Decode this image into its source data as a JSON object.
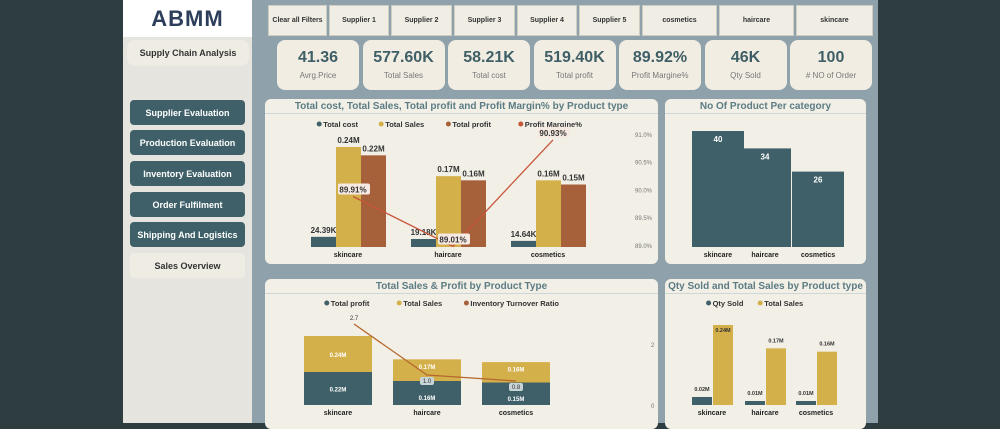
{
  "logo": "ABMM",
  "sidebar": {
    "title": "Supply Chain Analysis",
    "items": [
      "Supplier Evaluation",
      "Production Evaluation",
      "Inventory Evaluation",
      "Order Fulfilment",
      "Shipping And Logistics",
      "Sales Overview"
    ],
    "active": "Sales Overview"
  },
  "filters": [
    "Clear all Filters",
    "Supplier 1",
    "Supplier 2",
    "Supplier 3",
    "Supplier 4",
    "Supplier 5",
    "cosmetics",
    "haircare",
    "skincare"
  ],
  "kpis": [
    {
      "value": "41.36",
      "label": "Avrg.Price"
    },
    {
      "value": "577.60K",
      "label": "Total Sales"
    },
    {
      "value": "58.21K",
      "label": "Total cost"
    },
    {
      "value": "519.40K",
      "label": "Total profit"
    },
    {
      "value": "89.92%",
      "label": "Profit Margine%"
    },
    {
      "value": "46K",
      "label": "Qty Sold"
    },
    {
      "value": "100",
      "label": "# NO of Order"
    }
  ],
  "colors": {
    "cost": "#3f6068",
    "sales": "#d4b04a",
    "profit": "#a6603a",
    "margin": "#c8553a",
    "sidebar_button": "#3f6068"
  },
  "chart_data": [
    {
      "type": "bar",
      "title": "Total cost, Total Sales, Total profit and Profit Margin% by Product type",
      "categories": [
        "skincare",
        "haircare",
        "cosmetics"
      ],
      "series": [
        {
          "name": "Total cost",
          "values": [
            24390,
            19180,
            14640
          ],
          "labels": [
            "24.39K",
            "19.18K",
            "14.64K"
          ]
        },
        {
          "name": "Total Sales",
          "values": [
            240000,
            170000,
            160000
          ],
          "labels": [
            "0.24M",
            "0.17M",
            "0.16M"
          ]
        },
        {
          "name": "Total profit",
          "values": [
            220000,
            160000,
            150000
          ],
          "labels": [
            "0.22M",
            "0.16M",
            "0.15M"
          ]
        },
        {
          "name": "Profit Margine%",
          "type": "line",
          "axis": "right",
          "values": [
            89.91,
            89.01,
            90.93
          ],
          "labels": [
            "89.91%",
            "89.01%",
            "90.93%"
          ]
        }
      ],
      "y2_ticks": [
        "91.0%",
        "90.5%",
        "90.0%",
        "89.5%",
        "89.0%"
      ],
      "y2lim": [
        89.0,
        91.0
      ],
      "legend": "top"
    },
    {
      "type": "bar",
      "title": "No Of Product Per category",
      "categories": [
        "skincare",
        "haircare",
        "cosmetics"
      ],
      "values": [
        40,
        34,
        26
      ]
    },
    {
      "type": "bar",
      "stacked": true,
      "title": "Total Sales & Profit by Product Type",
      "categories": [
        "skincare",
        "haircare",
        "cosmetics"
      ],
      "series": [
        {
          "name": "Total profit",
          "values": [
            220000,
            160000,
            150000
          ],
          "labels": [
            "0.22M",
            "0.16M",
            "0.15M"
          ]
        },
        {
          "name": "Total Sales",
          "values": [
            240000,
            170000,
            160000
          ],
          "labels": [
            "0.24M",
            "0.17M",
            "0.16M"
          ]
        },
        {
          "name": "Inventory Turnover Ratio",
          "type": "line",
          "axis": "right",
          "values": [
            2.7,
            1.0,
            0.8
          ],
          "labels": [
            "2.7",
            "1.0",
            "0.8"
          ]
        }
      ],
      "y2_ticks": [
        "2",
        "0"
      ],
      "legend": "top"
    },
    {
      "type": "bar",
      "title": "Qty Sold and Total Sales by Product type",
      "categories": [
        "skincare",
        "haircare",
        "cosmetics"
      ],
      "series": [
        {
          "name": "Qty Sold",
          "values": [
            20000,
            10000,
            10000
          ],
          "labels": [
            "0.02M",
            "0.01M",
            "0.01M"
          ]
        },
        {
          "name": "Total Sales",
          "values": [
            240000,
            170000,
            160000
          ],
          "labels": [
            "0.24M",
            "0.17M",
            "0.16M"
          ]
        }
      ],
      "legend": "top"
    }
  ]
}
